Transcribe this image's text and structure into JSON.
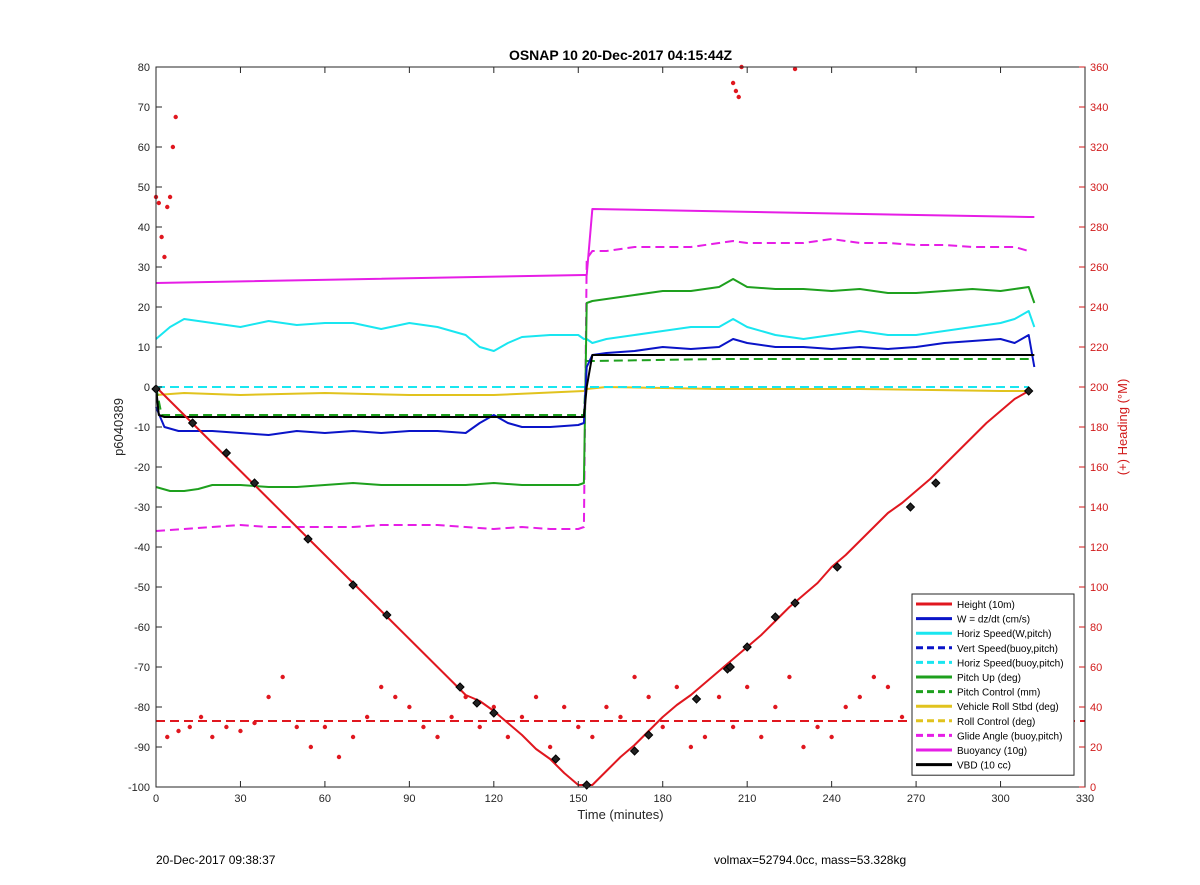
{
  "chart_data": {
    "type": "line",
    "title": "OSNAP 10 20-Dec-2017 04:15:44Z",
    "xlabel": "Time (minutes)",
    "ylabel": "p6040389",
    "y2label": "(+) Heading (°M)",
    "xlim": [
      0,
      330
    ],
    "ylim": [
      -100,
      80
    ],
    "y2lim": [
      0,
      360
    ],
    "xticks": [
      0,
      30,
      60,
      90,
      120,
      150,
      180,
      210,
      240,
      270,
      300,
      330
    ],
    "yticks": [
      -100,
      -90,
      -80,
      -70,
      -60,
      -50,
      -40,
      -30,
      -20,
      -10,
      0,
      10,
      20,
      30,
      40,
      50,
      60,
      70,
      80
    ],
    "y2ticks": [
      0,
      20,
      40,
      60,
      80,
      100,
      120,
      140,
      160,
      180,
      200,
      220,
      240,
      260,
      280,
      300,
      320,
      340,
      360
    ],
    "grid": false,
    "legend_position": "bottom-right",
    "series": [
      {
        "name": "Height (10m)",
        "color": "#e0171f",
        "style": "solid",
        "width": 2,
        "x": [
          0,
          5,
          10,
          15,
          20,
          25,
          30,
          35,
          40,
          45,
          50,
          55,
          60,
          65,
          70,
          75,
          80,
          85,
          90,
          95,
          100,
          105,
          110,
          115,
          120,
          125,
          130,
          135,
          140,
          145,
          150,
          155,
          160,
          165,
          170,
          175,
          180,
          185,
          190,
          195,
          200,
          205,
          210,
          215,
          220,
          225,
          230,
          235,
          240,
          245,
          250,
          255,
          260,
          265,
          270,
          275,
          280,
          285,
          290,
          295,
          300,
          305,
          310
        ],
        "y": [
          0,
          -3.5,
          -7,
          -10.5,
          -14,
          -17.5,
          -21,
          -24.5,
          -28,
          -31.5,
          -35,
          -38.5,
          -42,
          -45.5,
          -49,
          -52.5,
          -56,
          -59.5,
          -63,
          -66.5,
          -70,
          -73.5,
          -77,
          -78.5,
          -81,
          -84,
          -87,
          -90.5,
          -93,
          -96.5,
          -99.5,
          -99.5,
          -96,
          -92.5,
          -89.5,
          -86,
          -82.5,
          -79.5,
          -77,
          -74,
          -71,
          -68,
          -65,
          -62,
          -58.5,
          -55,
          -52,
          -49,
          -45,
          -42,
          -38.5,
          -35,
          -31.5,
          -29,
          -26,
          -23,
          -19.5,
          -16,
          -12.5,
          -9,
          -6,
          -3,
          -1
        ]
      },
      {
        "name": "W = dz/dt (cm/s)",
        "color": "#0a14c8",
        "style": "solid",
        "width": 2,
        "x": [
          0,
          3,
          8,
          15,
          20,
          30,
          40,
          50,
          60,
          70,
          80,
          90,
          100,
          110,
          115,
          120,
          125,
          130,
          140,
          150,
          152,
          153,
          155,
          160,
          170,
          180,
          190,
          200,
          205,
          210,
          220,
          230,
          240,
          250,
          260,
          270,
          280,
          290,
          300,
          305,
          310,
          312
        ],
        "y": [
          -5,
          -10,
          -11,
          -11,
          -11,
          -11.5,
          -12,
          -11,
          -11.5,
          -11,
          -11.5,
          -11,
          -11,
          -11.5,
          -9,
          -7,
          -9,
          -10,
          -10,
          -9.5,
          -9,
          5,
          8,
          8.5,
          9,
          10,
          9.5,
          10,
          12,
          11,
          10,
          10,
          9.5,
          10,
          9.5,
          10,
          11,
          11.5,
          12,
          11,
          13,
          5
        ]
      },
      {
        "name": "Horiz Speed(W,pitch)",
        "color": "#19e6f0",
        "style": "solid",
        "width": 2,
        "x": [
          0,
          5,
          10,
          20,
          30,
          40,
          50,
          60,
          70,
          80,
          90,
          100,
          105,
          110,
          115,
          120,
          125,
          130,
          140,
          150,
          152,
          153,
          155,
          160,
          170,
          180,
          190,
          200,
          205,
          210,
          220,
          230,
          240,
          250,
          260,
          270,
          280,
          290,
          300,
          305,
          310,
          312
        ],
        "y": [
          12,
          15,
          17,
          16,
          15,
          16.5,
          15.5,
          16,
          16,
          14.5,
          16,
          15,
          14,
          13,
          10,
          9,
          11,
          12.5,
          13,
          13,
          12,
          12,
          11,
          12,
          13,
          14,
          15,
          15,
          17,
          15,
          13,
          12,
          13,
          14,
          13,
          13,
          14,
          15,
          16,
          17,
          19,
          15
        ]
      },
      {
        "name": "Vert Speed(buoy,pitch)",
        "color": "#0a14c8",
        "style": "dashed",
        "width": 2,
        "x": [],
        "y": []
      },
      {
        "name": "Horiz Speed(buoy,pitch)",
        "color": "#19e6f0",
        "style": "dashed",
        "width": 2,
        "x": [
          0,
          152,
          153,
          310
        ],
        "y": [
          0,
          0,
          0,
          0
        ]
      },
      {
        "name": "Pitch Up (deg)",
        "color": "#1ea01e",
        "style": "solid",
        "width": 2,
        "x": [
          0,
          5,
          10,
          15,
          20,
          30,
          40,
          50,
          60,
          70,
          80,
          90,
          100,
          110,
          120,
          130,
          140,
          150,
          152,
          153,
          155,
          160,
          170,
          180,
          190,
          200,
          205,
          210,
          220,
          230,
          240,
          250,
          260,
          270,
          280,
          290,
          300,
          305,
          310,
          312
        ],
        "y": [
          -25,
          -26,
          -26,
          -25.5,
          -24.5,
          -24.5,
          -25,
          -25,
          -24.5,
          -24,
          -24.5,
          -24.5,
          -24.5,
          -24.5,
          -24,
          -24.5,
          -24.5,
          -24.5,
          -24,
          21,
          21.5,
          22,
          23,
          24,
          24,
          25,
          27,
          25,
          24.5,
          24.5,
          24,
          24.5,
          23.5,
          23.5,
          24,
          24.5,
          24,
          24.5,
          25,
          21
        ]
      },
      {
        "name": "Pitch Control (mm)",
        "color": "#1ea01e",
        "style": "dashed",
        "width": 2,
        "x": [
          0,
          2,
          152,
          153,
          155,
          200,
          260,
          310
        ],
        "y": [
          0,
          -7,
          -7,
          6.5,
          6.5,
          7,
          7,
          7
        ]
      },
      {
        "name": "Vehicle Roll Stbd (deg)",
        "color": "#e1c31e",
        "style": "solid",
        "width": 2,
        "x": [
          0,
          10,
          30,
          60,
          90,
          120,
          152,
          153,
          160,
          200,
          250,
          300,
          310
        ],
        "y": [
          -2,
          -1.5,
          -2,
          -1.5,
          -2,
          -2,
          -1,
          -0.5,
          0,
          -0.5,
          -0.5,
          -1,
          -1
        ]
      },
      {
        "name": "Roll Control (deg)",
        "color": "#e1c31e",
        "style": "dashed",
        "width": 2,
        "x": [
          0,
          152,
          153,
          310
        ],
        "y": [
          0,
          0,
          0,
          0
        ]
      },
      {
        "name": "Glide Angle (buoy,pitch)",
        "color": "#e61ee6",
        "style": "dashed",
        "width": 2,
        "x": [
          0,
          10,
          20,
          30,
          40,
          50,
          60,
          70,
          80,
          90,
          100,
          110,
          120,
          130,
          140,
          150,
          152,
          153,
          155,
          160,
          170,
          180,
          190,
          200,
          205,
          210,
          220,
          230,
          240,
          250,
          260,
          270,
          280,
          290,
          300,
          305,
          310
        ],
        "y": [
          -36,
          -35.5,
          -35,
          -34.5,
          -35,
          -35,
          -35,
          -35,
          -34.5,
          -34.5,
          -34.5,
          -35,
          -35.5,
          -35,
          -35.5,
          -35.5,
          -35,
          32,
          34,
          34,
          35,
          35,
          35,
          36,
          36.5,
          36,
          36,
          36,
          37,
          36,
          36,
          35.5,
          35.5,
          35,
          35,
          35,
          34
        ]
      },
      {
        "name": "Buoyancy (10g)",
        "color": "#e61ee6",
        "style": "solid",
        "width": 2,
        "x": [
          0,
          152,
          153,
          155,
          310,
          312
        ],
        "y": [
          26,
          28,
          28,
          44.5,
          42.5,
          42.5
        ]
      },
      {
        "name": "VBD (10 cc)",
        "color": "#000000",
        "style": "solid",
        "width": 2,
        "x": [
          0,
          1,
          3,
          152,
          153,
          155,
          312
        ],
        "y": [
          0,
          -7,
          -7.5,
          -7.5,
          0,
          8,
          8
        ]
      }
    ],
    "heading_series": {
      "name": "(+) Heading (°M)",
      "color": "#e0171f",
      "marker": "dot",
      "axis": "right",
      "mean_line": 33,
      "x": [
        4,
        8,
        12,
        16,
        20,
        25,
        30,
        35,
        40,
        45,
        50,
        55,
        60,
        65,
        70,
        75,
        80,
        85,
        90,
        95,
        100,
        105,
        110,
        115,
        120,
        125,
        130,
        135,
        140,
        145,
        150,
        155,
        160,
        165,
        170,
        175,
        180,
        185,
        190,
        195,
        200,
        205,
        210,
        215,
        220,
        225,
        230,
        235,
        240,
        245,
        250,
        255,
        260,
        265,
        270,
        275,
        280,
        285,
        290,
        295,
        300,
        305,
        310
      ],
      "y": [
        25,
        28,
        30,
        35,
        25,
        30,
        28,
        32,
        45,
        55,
        30,
        20,
        30,
        15,
        25,
        35,
        50,
        45,
        40,
        30,
        25,
        35,
        45,
        30,
        40,
        25,
        35,
        45,
        20,
        40,
        30,
        25,
        40,
        35,
        55,
        45,
        30,
        50,
        20,
        25,
        45,
        30,
        50,
        25,
        40,
        55,
        20,
        30,
        25,
        40,
        45,
        55,
        50,
        35,
        25,
        40,
        30,
        20,
        45,
        55,
        30,
        15,
        10
      ],
      "high_x": [
        0,
        1,
        2,
        3,
        4,
        5,
        6,
        7,
        205,
        206,
        207,
        208,
        227
      ],
      "high_y": [
        295,
        292,
        275,
        265,
        290,
        295,
        320,
        335,
        352,
        348,
        345,
        360,
        359
      ]
    },
    "markers": {
      "x": [
        0,
        13,
        25,
        35,
        54,
        70,
        82,
        108,
        114,
        120,
        142,
        153,
        170,
        175,
        192,
        203,
        204,
        210,
        220,
        227,
        242,
        268,
        277,
        310
      ],
      "y": [
        -0.5,
        -9,
        -16.5,
        -24,
        -38,
        -49.5,
        -57,
        -75,
        -79,
        -81.5,
        -93,
        -99.5,
        -91,
        -87,
        -78,
        -70.5,
        -70,
        -65,
        -57.5,
        -54,
        -45,
        -30,
        -24,
        -1
      ]
    }
  },
  "footer": {
    "left": "20-Dec-2017 09:38:37",
    "right": "volmax=52794.0cc, mass=53.328kg"
  }
}
